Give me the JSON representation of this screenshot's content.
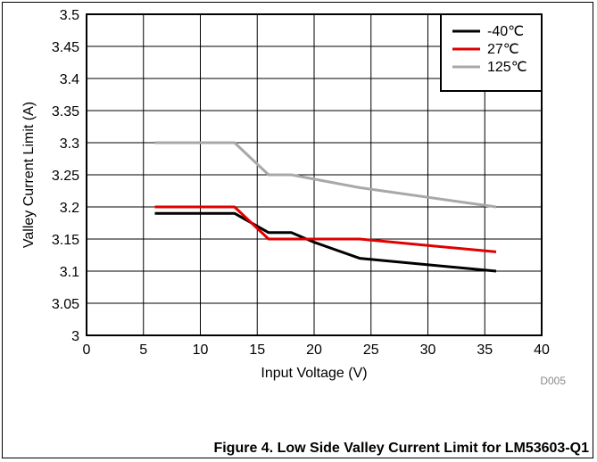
{
  "chart_data": {
    "type": "line",
    "xlabel": "Input Voltage (V)",
    "ylabel": "Valley Current Limit (A)",
    "xlim": [
      0,
      40
    ],
    "ylim": [
      3,
      3.5
    ],
    "x_ticks": [
      "0",
      "5",
      "10",
      "15",
      "20",
      "25",
      "30",
      "35",
      "40"
    ],
    "y_ticks": [
      "3",
      "3.05",
      "3.1",
      "3.15",
      "3.2",
      "3.25",
      "3.3",
      "3.35",
      "3.4",
      "3.45",
      "3.5"
    ],
    "grid": true,
    "legend_position": "top-right",
    "series": [
      {
        "name": "-40℃",
        "color": "#000000",
        "x": [
          6,
          13,
          16,
          18,
          20,
          24,
          36
        ],
        "y": [
          3.19,
          3.19,
          3.16,
          3.16,
          3.145,
          3.12,
          3.1
        ]
      },
      {
        "name": "27℃",
        "color": "#e00000",
        "x": [
          6,
          13,
          16,
          24,
          36
        ],
        "y": [
          3.2,
          3.2,
          3.15,
          3.15,
          3.13
        ]
      },
      {
        "name": "125℃",
        "color": "#a8a8a8",
        "x": [
          6,
          13,
          16,
          18,
          24,
          36
        ],
        "y": [
          3.3,
          3.3,
          3.25,
          3.25,
          3.23,
          3.2
        ]
      }
    ]
  },
  "figure_code": "D005",
  "caption": "Figure 4. Low Side Valley Current Limit for LM53603-Q1"
}
